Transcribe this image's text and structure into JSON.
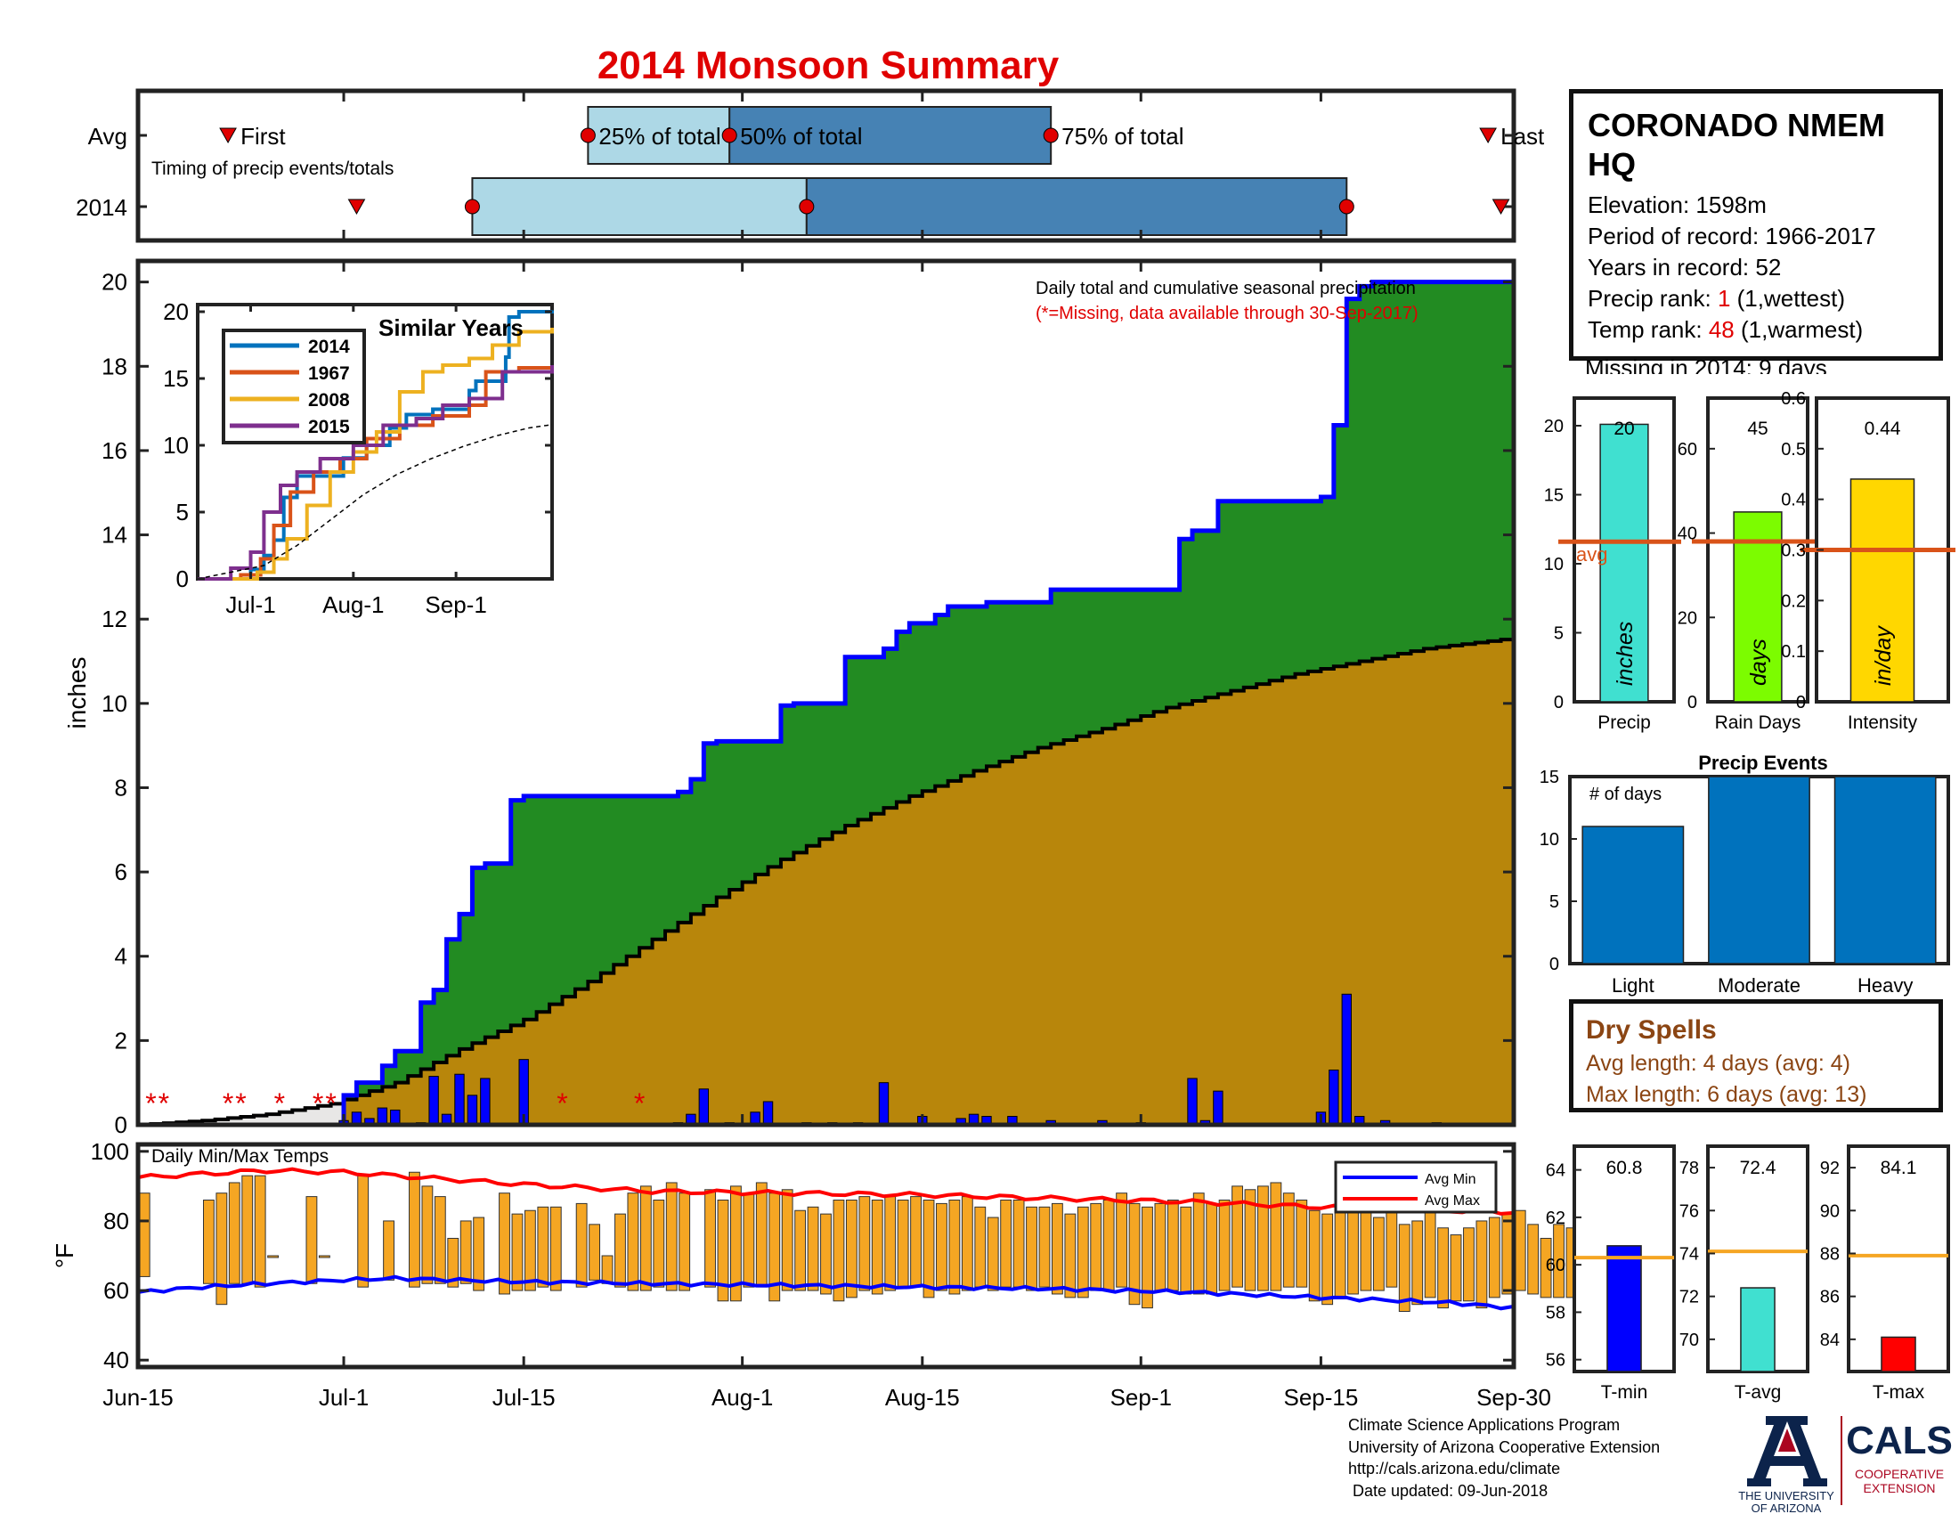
{
  "page": {
    "title": "2014 Monsoon Summary",
    "colors": {
      "title": "#e00000",
      "green": "#228b22",
      "blue": "#0000ff",
      "avgfill": "#e8e7e6",
      "brown": "#b8860b"
    }
  },
  "timing": {
    "row_avg": "Avg",
    "row_year": "2014",
    "caption": "Timing of precip events/totals",
    "first_label": "First",
    "last_label": "Last",
    "p25_label": "25% of total",
    "p50_label": "50% of total",
    "p75_label": "75% of total",
    "avg": {
      "first": "Jun-22",
      "p25": "Jul-20",
      "p50": "Jul-31",
      "p75": "Aug-25",
      "last": "Sep-28"
    },
    "year": {
      "first": "Jul-2",
      "p25": "Jul-11",
      "p50": "Aug-6",
      "p75": "Sep-17",
      "last": "Sep-29"
    }
  },
  "precip_panel": {
    "ylabel": "inches",
    "note": "Daily total and cumulative seasonal precipitation",
    "missing_note": "(*=Missing, data available through 30-Sep-2017)",
    "x_ticks": [
      "Jun-15",
      "Jul-1",
      "Jul-15",
      "Aug-1",
      "Aug-15",
      "Sep-1",
      "Sep-15",
      "Sep-30"
    ],
    "y_ticks": [
      "0",
      "2",
      "4",
      "6",
      "8",
      "10",
      "12",
      "14",
      "16",
      "18",
      "20"
    ]
  },
  "similar": {
    "title": "Similar Years",
    "legend": [
      "2014",
      "1967",
      "2008",
      "2015"
    ],
    "x_ticks": [
      "Jul-1",
      "Aug-1",
      "Sep-1"
    ],
    "y_ticks": [
      "0",
      "5",
      "10",
      "15",
      "20"
    ]
  },
  "temp_panel": {
    "title": "Daily Min/Max Temps",
    "ylabel": "°F",
    "legend_min": "Avg Min",
    "legend_max": "Avg Max",
    "y_ticks": [
      "40",
      "60",
      "80",
      "100"
    ]
  },
  "station": {
    "name_line1": "CORONADO NMEM",
    "name_line2": "HQ",
    "elevation": "Elevation: 1598m",
    "period": "Period of record: 1966-2017",
    "years": "Years in record: 52",
    "precip_rank_prefix": "Precip rank: ",
    "precip_rank_value": "1",
    "precip_rank_suffix": " (1,wettest)",
    "temp_rank_prefix": "Temp rank: ",
    "temp_rank_value": "48",
    "temp_rank_suffix": " (1,warmest)",
    "missing": "Missing in 2014: 9 days"
  },
  "summary_bars": {
    "precip": {
      "label": "Precip",
      "unit": "inches",
      "value_text": "20",
      "avg_label": "avg",
      "y_ticks": [
        "0",
        "5",
        "10",
        "15",
        "20"
      ]
    },
    "rain_days": {
      "label": "Rain Days",
      "unit": "days",
      "value_text": "45",
      "y_ticks": [
        "0",
        "20",
        "40",
        "60"
      ]
    },
    "intensity": {
      "label": "Intensity",
      "unit": "in/day",
      "value_text": "0.44",
      "y_ticks": [
        "0",
        "0.1",
        "0.2",
        "0.3",
        "0.4",
        "0.5",
        "0.6"
      ]
    }
  },
  "events": {
    "title": "Precip Events",
    "caption": "# of days",
    "y_ticks": [
      "0",
      "5",
      "10",
      "15"
    ]
  },
  "dry_spells": {
    "title": "Dry Spells",
    "avg_line": "Avg length: 4 days (avg: 4)",
    "max_line": "Max length: 6 days (avg: 13)"
  },
  "temp_bars": {
    "tmin": {
      "label": "T-min",
      "value_text": "60.8",
      "y_ticks": [
        "56",
        "58",
        "60",
        "62",
        "64"
      ]
    },
    "tavg": {
      "label": "T-avg",
      "value_text": "72.4",
      "y_ticks": [
        "70",
        "72",
        "74",
        "76",
        "78"
      ]
    },
    "tmax": {
      "label": "T-max",
      "value_text": "84.1",
      "y_ticks": [
        "84",
        "86",
        "88",
        "90",
        "92"
      ]
    }
  },
  "footer": {
    "line1": "Climate Science Applications Program",
    "line2": "University of Arizona Cooperative Extension",
    "line3": "http://cals.arizona.edu/climate",
    "line4": " Date updated: 09-Jun-2018"
  },
  "logos": {
    "ua_line1": "THE UNIVERSITY",
    "ua_line2": "OF ARIZONA",
    "cals_main": "CALS",
    "cals_line1": "COOPERATIVE",
    "cals_line2": "EXTENSION"
  },
  "chart_data": [
    {
      "type": "area",
      "id": "cumulative_precip",
      "x_start": "Jun-15",
      "x_end": "Sep-30",
      "ylabel": "inches",
      "ylim": [
        0,
        20.5
      ],
      "grid": false,
      "cumulative_2014": {
        "dates": [
          "Jun-15",
          "Jul-1",
          "Jul-2",
          "Jul-4",
          "Jul-5",
          "Jul-7",
          "Jul-8",
          "Jul-9",
          "Jul-10",
          "Jul-11",
          "Jul-12",
          "Jul-14",
          "Jul-15",
          "Jul-26",
          "Jul-27",
          "Jul-28",
          "Jul-29",
          "Jul-30",
          "Aug-4",
          "Aug-5",
          "Aug-9",
          "Aug-12",
          "Aug-13",
          "Aug-14",
          "Aug-16",
          "Aug-17",
          "Aug-20",
          "Aug-25",
          "Sep-4",
          "Sep-5",
          "Sep-7",
          "Sep-15",
          "Sep-16",
          "Sep-17",
          "Sep-18",
          "Sep-19",
          "Sep-30"
        ],
        "values": [
          0,
          0.7,
          1.0,
          1.4,
          1.75,
          2.9,
          3.2,
          4.4,
          5.0,
          6.1,
          6.2,
          7.7,
          7.8,
          7.8,
          7.9,
          8.2,
          9.05,
          9.1,
          9.95,
          10.0,
          11.1,
          11.3,
          11.7,
          11.9,
          12.1,
          12.3,
          12.4,
          12.7,
          13.9,
          14.1,
          14.8,
          14.9,
          16.6,
          19.6,
          19.9,
          20.0,
          20.1
        ]
      },
      "cumulative_avg": {
        "dates": [
          "Jun-15",
          "Jun-20",
          "Jun-25",
          "Jun-30",
          "Jul-5",
          "Jul-10",
          "Jul-15",
          "Jul-20",
          "Jul-25",
          "Jul-30",
          "Aug-4",
          "Aug-9",
          "Aug-14",
          "Aug-19",
          "Aug-24",
          "Aug-29",
          "Sep-3",
          "Sep-8",
          "Sep-13",
          "Sep-18",
          "Sep-23",
          "Sep-30"
        ],
        "values": [
          0,
          0.1,
          0.25,
          0.5,
          1.0,
          1.8,
          2.5,
          3.4,
          4.4,
          5.4,
          6.3,
          7.1,
          7.8,
          8.4,
          8.95,
          9.4,
          9.9,
          10.3,
          10.7,
          11.0,
          11.3,
          11.55
        ]
      },
      "daily_precip": [
        {
          "date": "Jul-1",
          "value": 0.1
        },
        {
          "date": "Jul-2",
          "value": 0.3
        },
        {
          "date": "Jul-3",
          "value": 0.15
        },
        {
          "date": "Jul-4",
          "value": 0.4
        },
        {
          "date": "Jul-5",
          "value": 0.35
        },
        {
          "date": "Jul-7",
          "value": 0.05
        },
        {
          "date": "Jul-8",
          "value": 1.15
        },
        {
          "date": "Jul-9",
          "value": 0.25
        },
        {
          "date": "Jul-10",
          "value": 1.2
        },
        {
          "date": "Jul-11",
          "value": 0.7
        },
        {
          "date": "Jul-12",
          "value": 1.1
        },
        {
          "date": "Jul-15",
          "value": 1.55
        },
        {
          "date": "Jul-27",
          "value": 0.05
        },
        {
          "date": "Jul-28",
          "value": 0.25
        },
        {
          "date": "Jul-29",
          "value": 0.85
        },
        {
          "date": "Jul-31",
          "value": 0.05
        },
        {
          "date": "Aug-2",
          "value": 0.3
        },
        {
          "date": "Aug-3",
          "value": 0.55
        },
        {
          "date": "Aug-6",
          "value": 0.05
        },
        {
          "date": "Aug-8",
          "value": 0.05
        },
        {
          "date": "Aug-10",
          "value": 0.05
        },
        {
          "date": "Aug-12",
          "value": 1.0
        },
        {
          "date": "Aug-15",
          "value": 0.2
        },
        {
          "date": "Aug-18",
          "value": 0.15
        },
        {
          "date": "Aug-19",
          "value": 0.25
        },
        {
          "date": "Aug-20",
          "value": 0.2
        },
        {
          "date": "Aug-22",
          "value": 0.2
        },
        {
          "date": "Aug-25",
          "value": 0.1
        },
        {
          "date": "Aug-29",
          "value": 0.1
        },
        {
          "date": "Sep-1",
          "value": 0.05
        },
        {
          "date": "Sep-5",
          "value": 1.1
        },
        {
          "date": "Sep-6",
          "value": 0.1
        },
        {
          "date": "Sep-7",
          "value": 0.8
        },
        {
          "date": "Sep-15",
          "value": 0.3
        },
        {
          "date": "Sep-16",
          "value": 1.3
        },
        {
          "date": "Sep-17",
          "value": 3.1
        },
        {
          "date": "Sep-18",
          "value": 0.2
        },
        {
          "date": "Sep-20",
          "value": 0.1
        },
        {
          "date": "Sep-24",
          "value": 0.05
        }
      ],
      "missing_dates": [
        "Jun-16",
        "Jun-17",
        "Jun-22",
        "Jun-23",
        "Jun-26",
        "Jun-29",
        "Jun-30",
        "Jul-18",
        "Jul-24"
      ]
    },
    {
      "type": "line",
      "id": "similar_years",
      "title": "Similar Years",
      "ylim": [
        0,
        20
      ],
      "x_start": "Jun-15",
      "x_end": "Sep-30",
      "series": [
        {
          "name": "2014",
          "color": "#0072bd",
          "dates": [
            "Jun-15",
            "Jul-1",
            "Jul-5",
            "Jul-8",
            "Jul-11",
            "Jul-15",
            "Jul-29",
            "Aug-5",
            "Aug-12",
            "Aug-17",
            "Aug-25",
            "Sep-5",
            "Sep-7",
            "Sep-16",
            "Sep-17",
            "Sep-20",
            "Sep-30"
          ],
          "values": [
            0,
            0.7,
            1.75,
            2.9,
            6.1,
            7.7,
            9.05,
            10.0,
            11.3,
            12.3,
            12.7,
            14.1,
            14.8,
            16.6,
            19.6,
            20.0,
            20.1
          ]
        },
        {
          "name": "1967",
          "color": "#d95319",
          "dates": [
            "Jun-15",
            "Jun-28",
            "Jul-4",
            "Jul-8",
            "Jul-13",
            "Jul-20",
            "Jul-28",
            "Aug-5",
            "Aug-15",
            "Aug-25",
            "Sep-5",
            "Sep-10",
            "Sep-20",
            "Sep-30"
          ],
          "values": [
            0,
            0.3,
            1.5,
            4.0,
            6.5,
            8.0,
            9.0,
            10.5,
            11.5,
            12.2,
            13.0,
            15.5,
            15.8,
            16.0
          ]
        },
        {
          "name": "2008",
          "color": "#edb120",
          "dates": [
            "Jun-15",
            "Jul-3",
            "Jul-8",
            "Jul-12",
            "Jul-18",
            "Jul-25",
            "Aug-1",
            "Aug-8",
            "Aug-15",
            "Aug-22",
            "Aug-28",
            "Sep-5",
            "Sep-12",
            "Sep-20",
            "Sep-30"
          ],
          "values": [
            0,
            0.5,
            1.5,
            3.0,
            5.5,
            8.0,
            9.5,
            11.0,
            14.0,
            15.5,
            16.0,
            16.5,
            17.5,
            18.5,
            18.8
          ]
        },
        {
          "name": "2015",
          "color": "#7e2f8e",
          "dates": [
            "Jun-15",
            "Jun-25",
            "Jul-1",
            "Jul-5",
            "Jul-10",
            "Jul-15",
            "Jul-22",
            "Aug-1",
            "Aug-10",
            "Aug-20",
            "Aug-28",
            "Sep-5",
            "Sep-15",
            "Sep-30"
          ],
          "values": [
            0,
            0.8,
            2.0,
            5.0,
            7.0,
            8.0,
            9.0,
            10.0,
            11.5,
            12.0,
            13.0,
            13.5,
            15.5,
            16.0
          ]
        },
        {
          "name": "avg",
          "color": "#000000",
          "dashed": true,
          "dates": [
            "Jun-15",
            "Jul-5",
            "Jul-15",
            "Jul-25",
            "Aug-4",
            "Aug-14",
            "Aug-24",
            "Sep-3",
            "Sep-13",
            "Sep-23",
            "Sep-30"
          ],
          "values": [
            0,
            1.0,
            2.5,
            4.4,
            6.3,
            7.8,
            8.95,
            9.9,
            10.7,
            11.3,
            11.55
          ]
        }
      ]
    },
    {
      "type": "bar",
      "id": "daily_temps",
      "ylim": [
        40,
        100
      ],
      "tmax": [
        88,
        null,
        null,
        null,
        null,
        86,
        88,
        91,
        93,
        93,
        70,
        null,
        null,
        87,
        70,
        null,
        null,
        93,
        null,
        80,
        null,
        94,
        90,
        87,
        75,
        80,
        81,
        null,
        88,
        82,
        83,
        84,
        84,
        null,
        85,
        79,
        70,
        82,
        88,
        90,
        86,
        91,
        88,
        null,
        89,
        86,
        90,
        88,
        91,
        88,
        89,
        83,
        84,
        82,
        86,
        86,
        87,
        86,
        87,
        86,
        87,
        86,
        85,
        86,
        87,
        84,
        81,
        86,
        86,
        84,
        84,
        85,
        82,
        84,
        85,
        86,
        88,
        85,
        84,
        85,
        86,
        84,
        88,
        85,
        86,
        90,
        89,
        90,
        91,
        88,
        86,
        83,
        82,
        84,
        84,
        83,
        81,
        86,
        79,
        80,
        84,
        78,
        76,
        78,
        80,
        81,
        82,
        83,
        79,
        75,
        79,
        78,
        73,
        80
      ],
      "tmin": [
        64,
        null,
        null,
        null,
        null,
        62,
        56,
        62,
        62,
        61,
        70,
        null,
        null,
        62,
        70,
        null,
        null,
        61,
        null,
        63,
        null,
        61,
        62,
        62,
        61,
        62,
        60,
        null,
        59,
        60,
        60,
        61,
        60,
        null,
        61,
        63,
        62,
        61,
        60,
        60,
        61,
        60,
        60,
        null,
        61,
        57,
        57,
        61,
        61,
        57,
        60,
        60,
        60,
        59,
        57,
        58,
        60,
        59,
        60,
        61,
        61,
        58,
        60,
        59,
        60,
        61,
        60,
        61,
        61,
        60,
        61,
        59,
        58,
        58,
        60,
        60,
        61,
        56,
        55,
        60,
        60,
        59,
        59,
        59,
        60,
        61,
        60,
        60,
        60,
        61,
        61,
        57,
        56,
        58,
        59,
        60,
        60,
        61,
        54,
        56,
        58,
        55,
        57,
        57,
        55,
        58,
        59,
        60,
        59,
        58,
        58,
        58,
        58,
        50
      ],
      "avg_max": {
        "dates": [
          "Jun-15",
          "Jun-20",
          "Jun-25",
          "Jul-1",
          "Jul-5",
          "Jul-15",
          "Jul-25",
          "Aug-5",
          "Aug-15",
          "Aug-25",
          "Sep-5",
          "Sep-15",
          "Sep-25",
          "Sep-30"
        ],
        "values": [
          92.5,
          93.5,
          94.5,
          94,
          93,
          90.5,
          88.5,
          88,
          87.5,
          86.5,
          85.5,
          84,
          83,
          82.5
        ]
      },
      "avg_min": {
        "dates": [
          "Jun-15",
          "Jun-20",
          "Jun-25",
          "Jul-1",
          "Jul-5",
          "Jul-15",
          "Jul-25",
          "Aug-5",
          "Aug-15",
          "Aug-25",
          "Sep-5",
          "Sep-15",
          "Sep-25",
          "Sep-30"
        ],
        "values": [
          59.5,
          61,
          62,
          63,
          63.5,
          62.5,
          62,
          61.5,
          61,
          60.5,
          59.5,
          58,
          56.5,
          55
        ]
      }
    },
    {
      "type": "bar",
      "id": "season_totals",
      "categories": [
        "Precip",
        "Rain Days",
        "Intensity"
      ],
      "values": [
        20.1,
        45,
        0.44
      ],
      "avg": [
        11.6,
        38,
        0.3
      ],
      "ylim": [
        [
          0,
          22
        ],
        [
          0,
          72
        ],
        [
          0,
          0.6
        ]
      ],
      "colors": [
        "#40e0d0",
        "#7cfc00",
        "#ffd700"
      ]
    },
    {
      "type": "bar",
      "id": "precip_events",
      "title": "Precip Events",
      "categories": [
        "Light",
        "Moderate",
        "Heavy"
      ],
      "values": [
        11,
        15,
        15
      ],
      "ylim": [
        0,
        15
      ]
    },
    {
      "type": "bar",
      "id": "season_temps",
      "categories": [
        "T-min",
        "T-avg",
        "T-max"
      ],
      "values": [
        60.8,
        72.4,
        84.1
      ],
      "avg": [
        60.3,
        74.1,
        87.9
      ],
      "ylim": [
        [
          55.5,
          65
        ],
        [
          68.5,
          79
        ],
        [
          82.5,
          93
        ]
      ],
      "colors": [
        "#0000ff",
        "#40e0d0",
        "#ff0000"
      ]
    }
  ]
}
